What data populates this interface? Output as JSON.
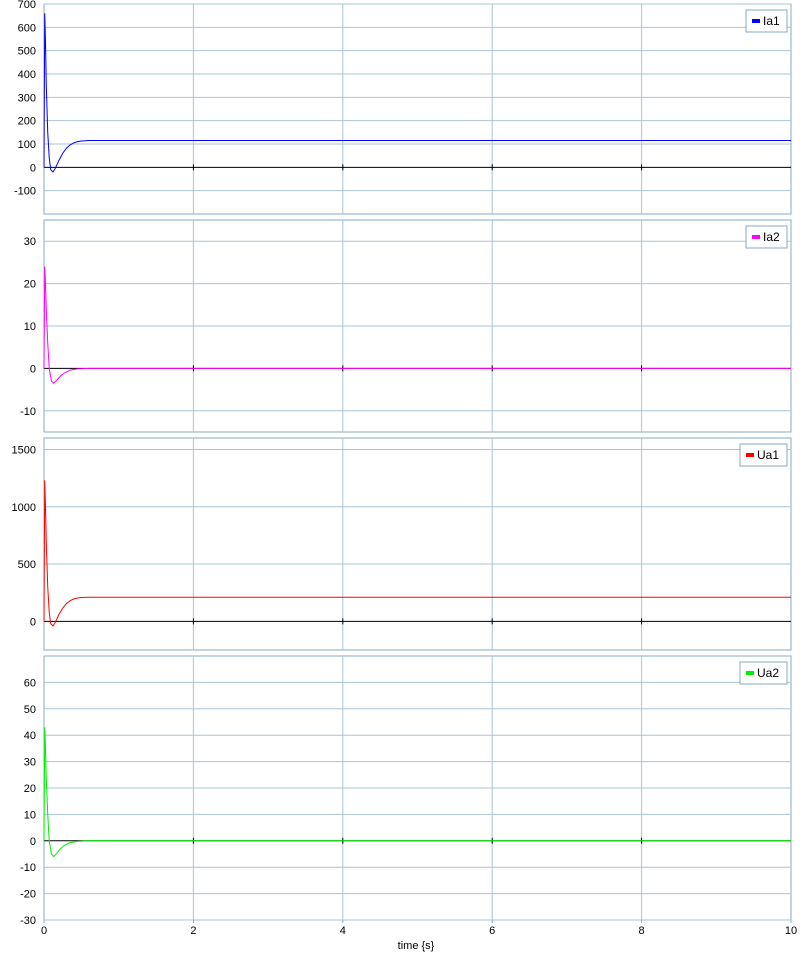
{
  "xlabel": "time {s}",
  "chart_data": [
    {
      "type": "line",
      "legend": "top-right",
      "grid": true,
      "xlim": [
        0,
        10
      ],
      "ylim": [
        -200,
        700
      ],
      "yticks": [
        -100,
        0,
        100,
        200,
        300,
        400,
        500,
        600,
        700
      ],
      "ytick_labels": [
        "-100",
        "0",
        "100",
        "200",
        "300",
        "400",
        "500",
        "600",
        "700"
      ],
      "series": [
        {
          "name": "Ia1",
          "color": "#0000ff",
          "x": [
            0,
            0.01,
            0.02,
            0.03,
            0.05,
            0.07,
            0.09,
            0.12,
            0.15,
            0.2,
            0.25,
            0.3,
            0.35,
            0.4,
            0.45,
            0.5,
            0.6,
            0.7,
            1.0,
            2.0,
            5.0,
            10.0
          ],
          "values": [
            0,
            660,
            540,
            360,
            150,
            40,
            -10,
            -20,
            -5,
            30,
            60,
            82,
            96,
            105,
            110,
            113,
            115,
            115,
            115,
            115,
            115,
            115
          ]
        }
      ]
    },
    {
      "type": "line",
      "legend": "top-right",
      "grid": true,
      "xlim": [
        0,
        10
      ],
      "ylim": [
        -15,
        35
      ],
      "yticks": [
        -10,
        0,
        10,
        20,
        30
      ],
      "ytick_labels": [
        "-10",
        "0",
        "10",
        "20",
        "30"
      ],
      "series": [
        {
          "name": "Ia2",
          "color": "#ff00ff",
          "x": [
            0,
            0.01,
            0.02,
            0.03,
            0.05,
            0.07,
            0.1,
            0.13,
            0.17,
            0.22,
            0.28,
            0.35,
            0.45,
            0.6,
            1.0,
            5.0,
            10.0
          ],
          "values": [
            0,
            24,
            20,
            14,
            6,
            0,
            -3,
            -3.5,
            -2.8,
            -1.8,
            -1,
            -0.4,
            -0.1,
            0,
            0,
            0,
            0
          ]
        }
      ]
    },
    {
      "type": "line",
      "legend": "top-right",
      "grid": true,
      "xlim": [
        0,
        10
      ],
      "ylim": [
        -250,
        1600
      ],
      "yticks": [
        0,
        500,
        1000,
        1500
      ],
      "ytick_labels": [
        "0",
        "500",
        "1000",
        "1500"
      ],
      "series": [
        {
          "name": "Ua1",
          "color": "#ff0000",
          "x": [
            0,
            0.01,
            0.02,
            0.03,
            0.05,
            0.07,
            0.09,
            0.12,
            0.15,
            0.2,
            0.25,
            0.3,
            0.35,
            0.4,
            0.45,
            0.5,
            0.6,
            0.7,
            1.0,
            2.0,
            5.0,
            10.0
          ],
          "values": [
            0,
            1230,
            1000,
            700,
            300,
            80,
            -20,
            -40,
            -10,
            60,
            115,
            155,
            180,
            196,
            204,
            208,
            210,
            210,
            210,
            210,
            210,
            210
          ]
        }
      ]
    },
    {
      "type": "line",
      "legend": "top-right",
      "grid": true,
      "xlim": [
        0,
        10
      ],
      "ylim": [
        -30,
        70
      ],
      "yticks": [
        -30,
        -20,
        -10,
        0,
        10,
        20,
        30,
        40,
        50,
        60
      ],
      "ytick_labels": [
        "-30",
        "-20",
        "-10",
        "0",
        "10",
        "20",
        "30",
        "40",
        "50",
        "60"
      ],
      "series": [
        {
          "name": "Ua2",
          "color": "#00ee00",
          "x": [
            0,
            0.01,
            0.02,
            0.03,
            0.05,
            0.07,
            0.1,
            0.13,
            0.17,
            0.22,
            0.28,
            0.35,
            0.45,
            0.6,
            1.0,
            5.0,
            10.0
          ],
          "values": [
            0,
            43,
            35,
            24,
            10,
            0,
            -5,
            -6,
            -4.8,
            -3,
            -1.6,
            -0.7,
            -0.2,
            0,
            0,
            0,
            0
          ]
        }
      ]
    }
  ],
  "xticks": [
    0,
    2,
    4,
    6,
    8,
    10
  ],
  "xtick_labels": [
    "0",
    "2",
    "4",
    "6",
    "8",
    "10"
  ],
  "colors": {
    "grid": "#a9c4d6",
    "frame": "#8aaac0",
    "zero_line": "#000000"
  }
}
